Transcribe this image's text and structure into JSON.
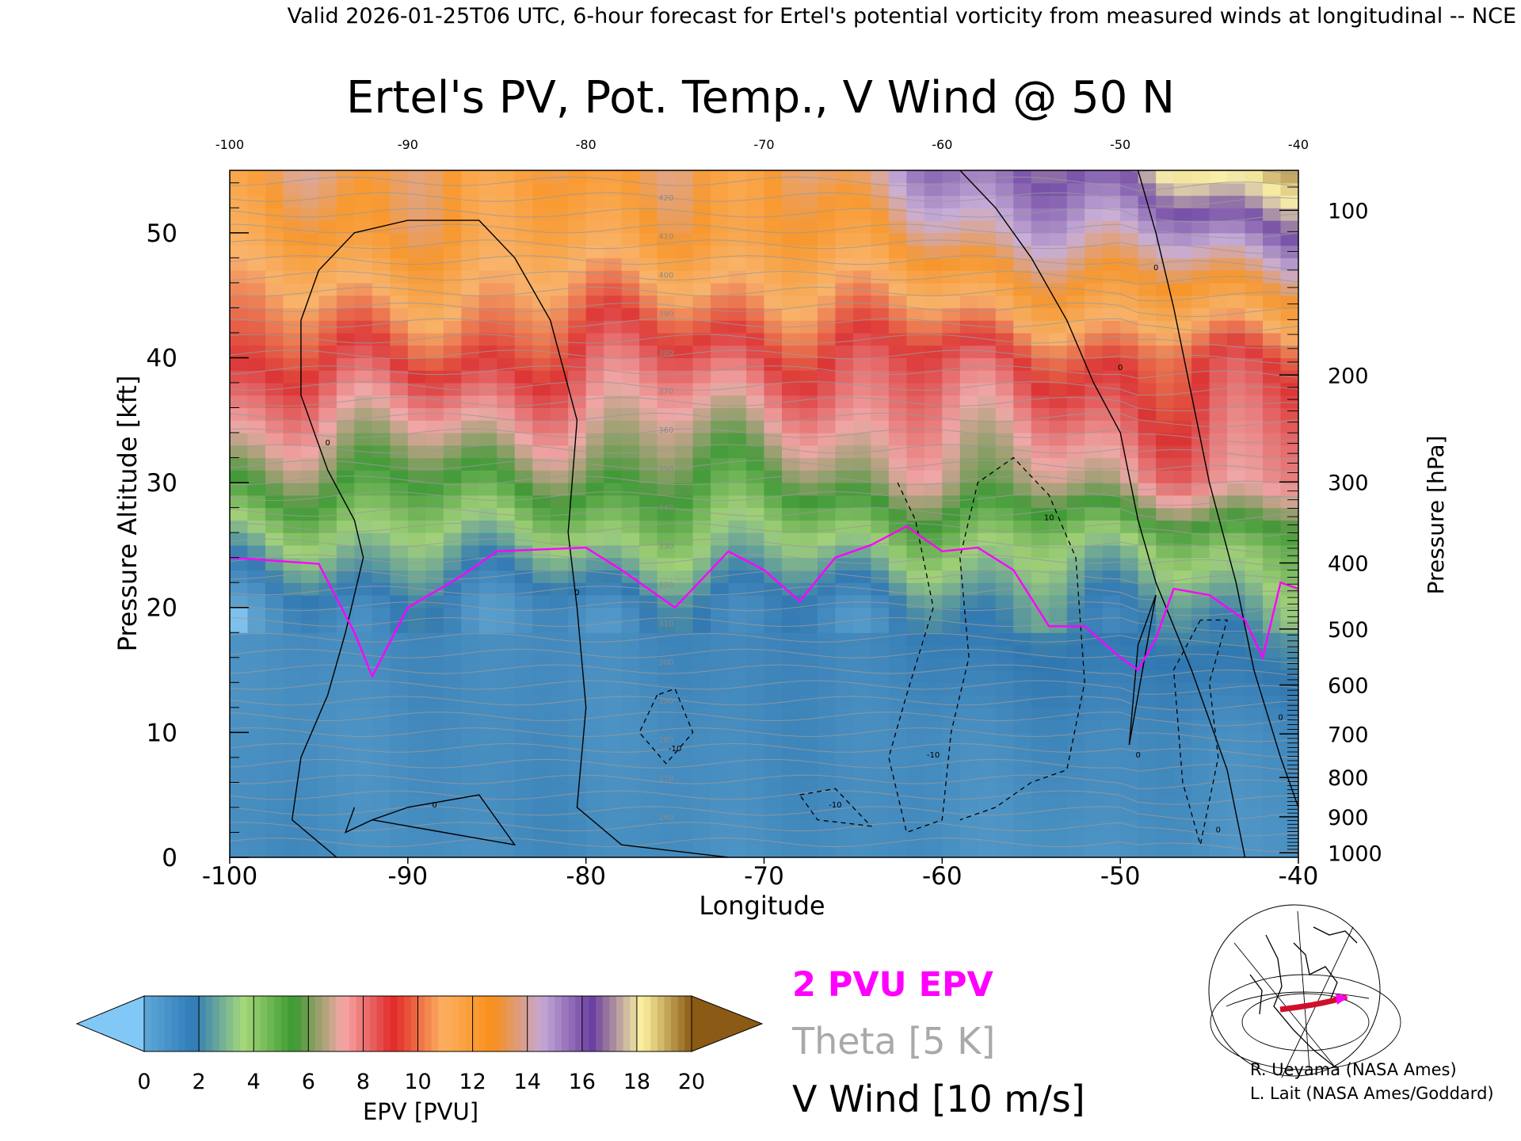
{
  "header": {
    "text": "Valid 2026-01-25T06 UTC, 6-hour forecast for Ertel's potential vorticity from measured winds at longitudinal -- NCE"
  },
  "chart_data": {
    "type": "heatmap",
    "title": "Ertel's PV, Pot. Temp., V Wind @ 50 N",
    "xlabel": "Longitude",
    "ylabel_left": "Pressure Altitude [kft]",
    "ylabel_right": "Pressure [hPa]",
    "x_ticks": [
      "-100",
      "-90",
      "-80",
      "-70",
      "-60",
      "-50",
      "-40"
    ],
    "x_ticks_top": [
      "-100",
      "-90",
      "-80",
      "-70",
      "-60",
      "-50",
      "-40"
    ],
    "y_ticks_left": [
      "0",
      "10",
      "20",
      "30",
      "40",
      "50"
    ],
    "y_ticks_right": [
      "1000",
      "900",
      "800",
      "700",
      "600",
      "500",
      "400",
      "300",
      "200",
      "100"
    ],
    "xlim": [
      -100,
      -40
    ],
    "ylim": [
      0,
      55
    ],
    "grid": false,
    "colorbar": {
      "label": "EPV [PVU]",
      "ticks": [
        "0",
        "2",
        "4",
        "6",
        "8",
        "10",
        "12",
        "14",
        "16",
        "18",
        "20"
      ],
      "range": [
        0,
        20
      ],
      "colors": [
        "#5ea8d8",
        "#2f7bb8",
        "#a6d87a",
        "#3a9a30",
        "#f7a8a8",
        "#e02a2a",
        "#fcb060",
        "#f98f1a",
        "#c4a8d6",
        "#6a3fa0",
        "#fdf3a0",
        "#8b5a14"
      ],
      "under_color": "#82c8f6",
      "over_color": "#8b5a14"
    },
    "levels_kft": [
      {
        "level": 0,
        "epv_by_region": {
          "west": 0.8,
          "central": 0.8,
          "east": 0.5
        }
      },
      {
        "level": 10,
        "epv_by_region": {
          "west": 0.8,
          "central": 0.9,
          "east": 1.0
        }
      },
      {
        "level": 20,
        "epv_by_region": {
          "west": 1.0,
          "central": 1.2,
          "east": 2.5
        }
      },
      {
        "level": 25,
        "epv_by_region": {
          "west": 3.0,
          "central": 3.5,
          "east": 4.0
        }
      },
      {
        "level": 30,
        "epv_by_region": {
          "west": 5.5,
          "central": 5.5,
          "east": 7.5
        }
      },
      {
        "level": 40,
        "epv_by_region": {
          "west": 9.5,
          "central": 8.5,
          "east": 9.5
        }
      },
      {
        "level": 50,
        "epv_by_region": {
          "west": 12.5,
          "central": 12.0,
          "east": 15.5
        }
      },
      {
        "level": 55,
        "epv_by_region": {
          "west": 13.0,
          "central": 12.5,
          "east": 18.5
        }
      }
    ],
    "pv2_contour": [
      [
        -100,
        24
      ],
      [
        -95,
        23.5
      ],
      [
        -93,
        18
      ],
      [
        -92,
        14.5
      ],
      [
        -90,
        20
      ],
      [
        -87,
        22.5
      ],
      [
        -85,
        24.5
      ],
      [
        -80,
        24.8
      ],
      [
        -78,
        23
      ],
      [
        -75,
        20
      ],
      [
        -72,
        24.5
      ],
      [
        -70,
        23
      ],
      [
        -68,
        20.5
      ],
      [
        -66,
        24
      ],
      [
        -64,
        25
      ],
      [
        -62,
        26.5
      ],
      [
        -60,
        24.5
      ],
      [
        -58,
        24.8
      ],
      [
        -56,
        23
      ],
      [
        -54,
        18.5
      ],
      [
        -52,
        18.5
      ],
      [
        -50,
        16
      ],
      [
        -49,
        15
      ],
      [
        -48,
        17.5
      ],
      [
        -47,
        21.5
      ],
      [
        -45,
        21
      ],
      [
        -43,
        19
      ],
      [
        -42,
        16
      ],
      [
        -41,
        22
      ],
      [
        -40,
        21.5
      ]
    ],
    "theta_contours": {
      "label": "Theta [5 K]",
      "labeled_values": [
        "260",
        "270",
        "280",
        "290",
        "300",
        "310",
        "320",
        "330",
        "340",
        "350",
        "360",
        "370",
        "380",
        "390",
        "400",
        "410",
        "420"
      ]
    },
    "v_wind_contours": {
      "label": "V Wind [10 m/s]",
      "labeled_values": [
        "0",
        "10",
        "-10"
      ]
    },
    "legend": {
      "pv_label": "2 PVU EPV",
      "pv_color": "#ff00ff",
      "theta_label": "Theta [5 K]",
      "theta_color": "#a9a9a9",
      "wind_label": "V Wind [10 m/s]",
      "wind_color": "#000000"
    }
  },
  "credits": {
    "line1": "R. Ueyama (NASA Ames)",
    "line2": "L. Lait (NASA Ames/Goddard)"
  },
  "inset_map": {
    "description_icon": "globe-map-icon",
    "track_color": "#d0102a",
    "marker_color": "#ff00ff"
  }
}
